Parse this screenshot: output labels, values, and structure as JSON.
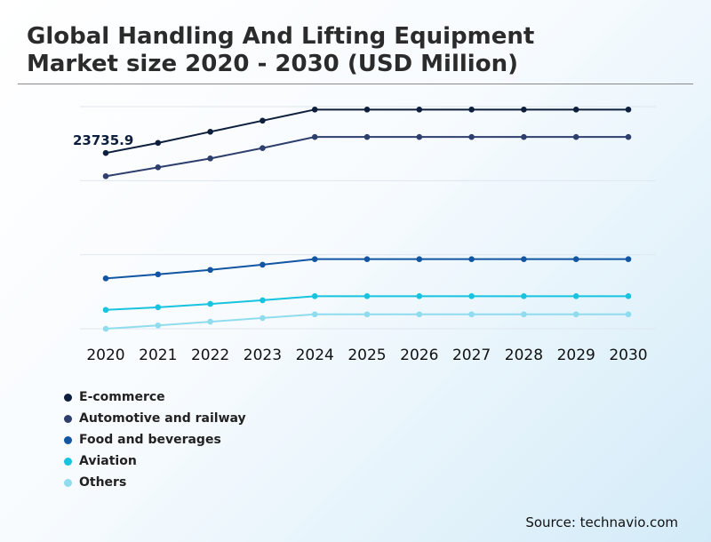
{
  "header": {
    "title_line1": "Global Handling And Lifting Equipment",
    "title_line2": "Market size 2020 - 2030 (USD Million)"
  },
  "source": "Source: technavio.com",
  "chart_data": {
    "type": "line",
    "x": [
      "2020",
      "2021",
      "2022",
      "2023",
      "2024",
      "2025",
      "2026",
      "2027",
      "2028",
      "2029",
      "2030"
    ],
    "value_label": "23735.9",
    "value_label_series": 0,
    "value_label_index": 0,
    "grid": true,
    "legend_position": "bottom-left",
    "ylim": [
      0,
      30000
    ],
    "series": [
      {
        "name": "E-commerce",
        "color": "#0d1f3c",
        "values": [
          23735.9,
          25100,
          26600,
          28100,
          29600,
          29600,
          29600,
          29600,
          29600,
          29600,
          29600
        ]
      },
      {
        "name": "Automotive and railway",
        "color": "#2e3f6e",
        "values": [
          20600,
          21800,
          23000,
          24400,
          25900,
          25900,
          25900,
          25900,
          25900,
          25900,
          25900
        ]
      },
      {
        "name": "Food and beverages",
        "color": "#1155a3",
        "values": [
          6800,
          7350,
          7950,
          8650,
          9400,
          9400,
          9400,
          9400,
          9400,
          9400,
          9400
        ]
      },
      {
        "name": "Aviation",
        "color": "#17c3df",
        "values": [
          2550,
          2900,
          3350,
          3850,
          4400,
          4400,
          4400,
          4400,
          4400,
          4400,
          4400
        ]
      },
      {
        "name": "Others",
        "color": "#8fdcef",
        "values": [
          0,
          450,
          950,
          1450,
          1950,
          1950,
          1950,
          1950,
          1950,
          1950,
          1950
        ]
      }
    ]
  }
}
